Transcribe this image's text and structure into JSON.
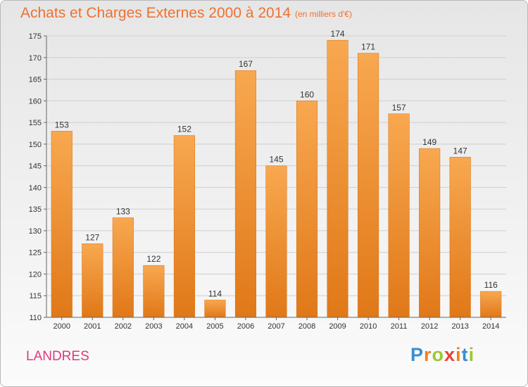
{
  "title": "Achats et Charges Externes 2000 à 2014",
  "subtitle": "(en milliers d'€)",
  "commune": "LANDRES",
  "logo": {
    "letters": [
      "P",
      "r",
      "o",
      "x",
      "i",
      "t",
      "i"
    ],
    "colors": [
      "#3a8fd0",
      "#f08020",
      "#9cc830",
      "#e8403a",
      "#f08020",
      "#3a8fd0",
      "#9cc830"
    ]
  },
  "colors": {
    "bar_light": "#f8a850",
    "bar_dark": "#e07818",
    "title": "#f07030",
    "commune": "#e0397a",
    "grid": "#cfcfcf"
  },
  "chart_data": {
    "type": "bar",
    "categories": [
      "2000",
      "2001",
      "2002",
      "2003",
      "2004",
      "2005",
      "2006",
      "2007",
      "2008",
      "2009",
      "2010",
      "2011",
      "2012",
      "2013",
      "2014"
    ],
    "values": [
      153,
      127,
      133,
      122,
      152,
      114,
      167,
      145,
      160,
      174,
      171,
      157,
      149,
      147,
      116
    ],
    "ylim": [
      110,
      175
    ],
    "yticks": [
      110,
      115,
      120,
      125,
      130,
      135,
      140,
      145,
      150,
      155,
      160,
      165,
      170,
      175
    ],
    "grid": true,
    "data_labels": true,
    "title": "Achats et Charges Externes 2000 à 2014",
    "xlabel": "",
    "ylabel": ""
  }
}
